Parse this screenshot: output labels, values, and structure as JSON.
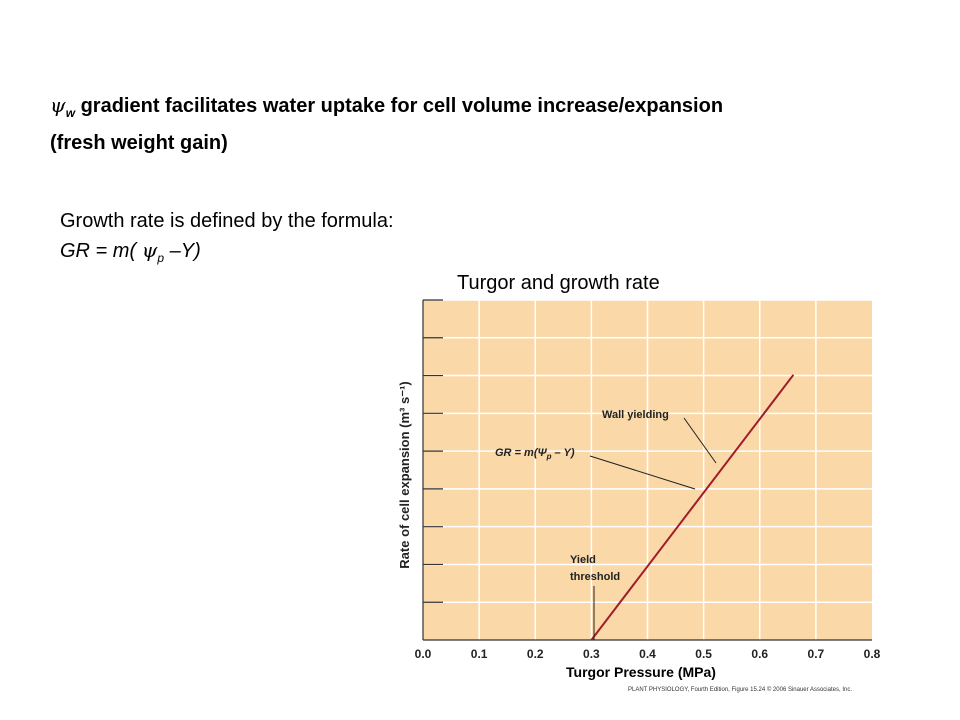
{
  "headline": {
    "symbol": "ψ",
    "subscript": "w",
    "line1_text": " gradient facilitates water uptake for cell volume  increase/expansion",
    "line2_text": "(fresh weight gain)"
  },
  "formula_block": {
    "intro": "Growth rate is defined by the formula:",
    "formula_prefix": "GR = m(",
    "psi": "ψ",
    "psi_sub": "p",
    "formula_suffix": " –Y)"
  },
  "chart_title": "Turgor and growth rate",
  "chart_data": {
    "type": "line",
    "xlabel": "Turgor Pressure (MPa)",
    "ylabel": "Rate of cell expansion (m³ s⁻¹)",
    "xlim": [
      0.0,
      0.8
    ],
    "x_ticks": [
      "0.0",
      "0.1",
      "0.2",
      "0.3",
      "0.4",
      "0.5",
      "0.6",
      "0.7",
      "0.8"
    ],
    "y_ticks_labeled": false,
    "y_tick_count": 9,
    "grid": true,
    "background_color": "#fad8a8",
    "grid_color": "#ffffff",
    "line_color": "#a01c2c",
    "series": [
      {
        "x": [
          0.3,
          0.66
        ],
        "y": [
          0,
          1
        ]
      }
    ],
    "annotations": {
      "wall_yielding": "Wall yielding",
      "equation_prefix": "GR = m(Ψ",
      "equation_sub": "p",
      "equation_suffix": " – Y)",
      "yield_line1": "Yield",
      "yield_line2": "threshold"
    },
    "credit": "PLANT PHYSIOLOGY, Fourth Edition, Figure 15.24 © 2006 Sinauer Associates, Inc."
  }
}
